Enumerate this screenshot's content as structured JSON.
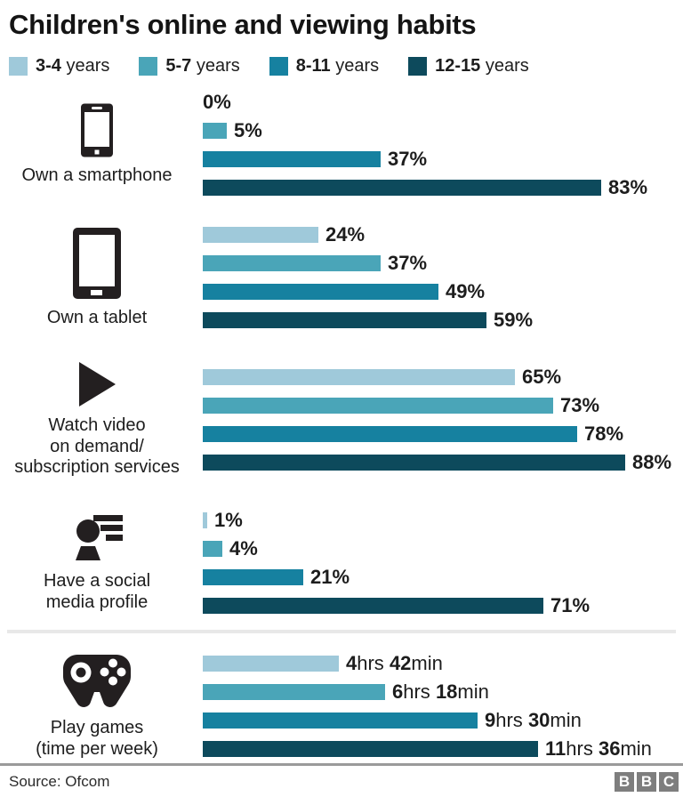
{
  "title": "Children's online and viewing habits",
  "legend": {
    "items": [
      {
        "range": "3-4",
        "suffix": " years",
        "color": "#9fc9da"
      },
      {
        "range": "5-7",
        "suffix": " years",
        "color": "#4aa5b8"
      },
      {
        "range": "8-11",
        "suffix": " years",
        "color": "#1681a0"
      },
      {
        "range": "12-15",
        "suffix": " years",
        "color": "#0d4a5c"
      }
    ]
  },
  "chart_data": {
    "type": "bar",
    "orientation": "horizontal",
    "series": [
      "3-4 years",
      "5-7 years",
      "8-11 years",
      "12-15 years"
    ],
    "colors": [
      "#9fc9da",
      "#4aa5b8",
      "#1681a0",
      "#0d4a5c"
    ],
    "value_axis": {
      "percent_max": 100,
      "hours_max": 14,
      "gridlines": false
    },
    "groups": [
      {
        "category_lines": [
          "Own a smartphone"
        ],
        "icon": "smartphone-icon",
        "unit": "percent",
        "values": [
          0,
          5,
          37,
          83
        ],
        "labels": [
          [
            {
              "text": "0%",
              "bold": true
            }
          ],
          [
            {
              "text": "5%",
              "bold": true
            }
          ],
          [
            {
              "text": "37%",
              "bold": true
            }
          ],
          [
            {
              "text": "83%",
              "bold": true
            }
          ]
        ]
      },
      {
        "category_lines": [
          "Own a tablet"
        ],
        "icon": "tablet-icon",
        "unit": "percent",
        "values": [
          24,
          37,
          49,
          59
        ],
        "labels": [
          [
            {
              "text": "24%",
              "bold": true
            }
          ],
          [
            {
              "text": "37%",
              "bold": true
            }
          ],
          [
            {
              "text": "49%",
              "bold": true
            }
          ],
          [
            {
              "text": "59%",
              "bold": true
            }
          ]
        ]
      },
      {
        "category_lines": [
          "Watch video",
          "on demand/",
          "subscription services"
        ],
        "icon": "play-icon",
        "unit": "percent",
        "values": [
          65,
          73,
          78,
          88
        ],
        "labels": [
          [
            {
              "text": "65%",
              "bold": true
            }
          ],
          [
            {
              "text": "73%",
              "bold": true
            }
          ],
          [
            {
              "text": "78%",
              "bold": true
            }
          ],
          [
            {
              "text": "88%",
              "bold": true
            }
          ]
        ]
      },
      {
        "category_lines": [
          "Have a social",
          "media profile"
        ],
        "icon": "social-profile-icon",
        "unit": "percent",
        "values": [
          1,
          4,
          21,
          71
        ],
        "labels": [
          [
            {
              "text": "1%",
              "bold": true
            }
          ],
          [
            {
              "text": "4%",
              "bold": true
            }
          ],
          [
            {
              "text": "21%",
              "bold": true
            }
          ],
          [
            {
              "text": "71%",
              "bold": true
            }
          ]
        ]
      },
      {
        "category_lines": [
          "Play games",
          "(time per week)"
        ],
        "icon": "gamepad-icon",
        "unit": "hours",
        "divider_above": true,
        "values": [
          4.7,
          6.3,
          9.5,
          11.6
        ],
        "labels": [
          [
            {
              "text": "4",
              "bold": true
            },
            {
              "text": "hrs ",
              "bold": false
            },
            {
              "text": "42",
              "bold": true
            },
            {
              "text": "min",
              "bold": false
            }
          ],
          [
            {
              "text": "6",
              "bold": true
            },
            {
              "text": "hrs ",
              "bold": false
            },
            {
              "text": "18",
              "bold": true
            },
            {
              "text": "min",
              "bold": false
            }
          ],
          [
            {
              "text": "9",
              "bold": true
            },
            {
              "text": "hrs ",
              "bold": false
            },
            {
              "text": "30",
              "bold": true
            },
            {
              "text": "min",
              "bold": false
            }
          ],
          [
            {
              "text": "11",
              "bold": true
            },
            {
              "text": "hrs ",
              "bold": false
            },
            {
              "text": "36",
              "bold": true
            },
            {
              "text": "min",
              "bold": false
            }
          ]
        ]
      }
    ]
  },
  "footer": {
    "source": "Source: Ofcom",
    "logo_letters": [
      "B",
      "B",
      "C"
    ]
  }
}
